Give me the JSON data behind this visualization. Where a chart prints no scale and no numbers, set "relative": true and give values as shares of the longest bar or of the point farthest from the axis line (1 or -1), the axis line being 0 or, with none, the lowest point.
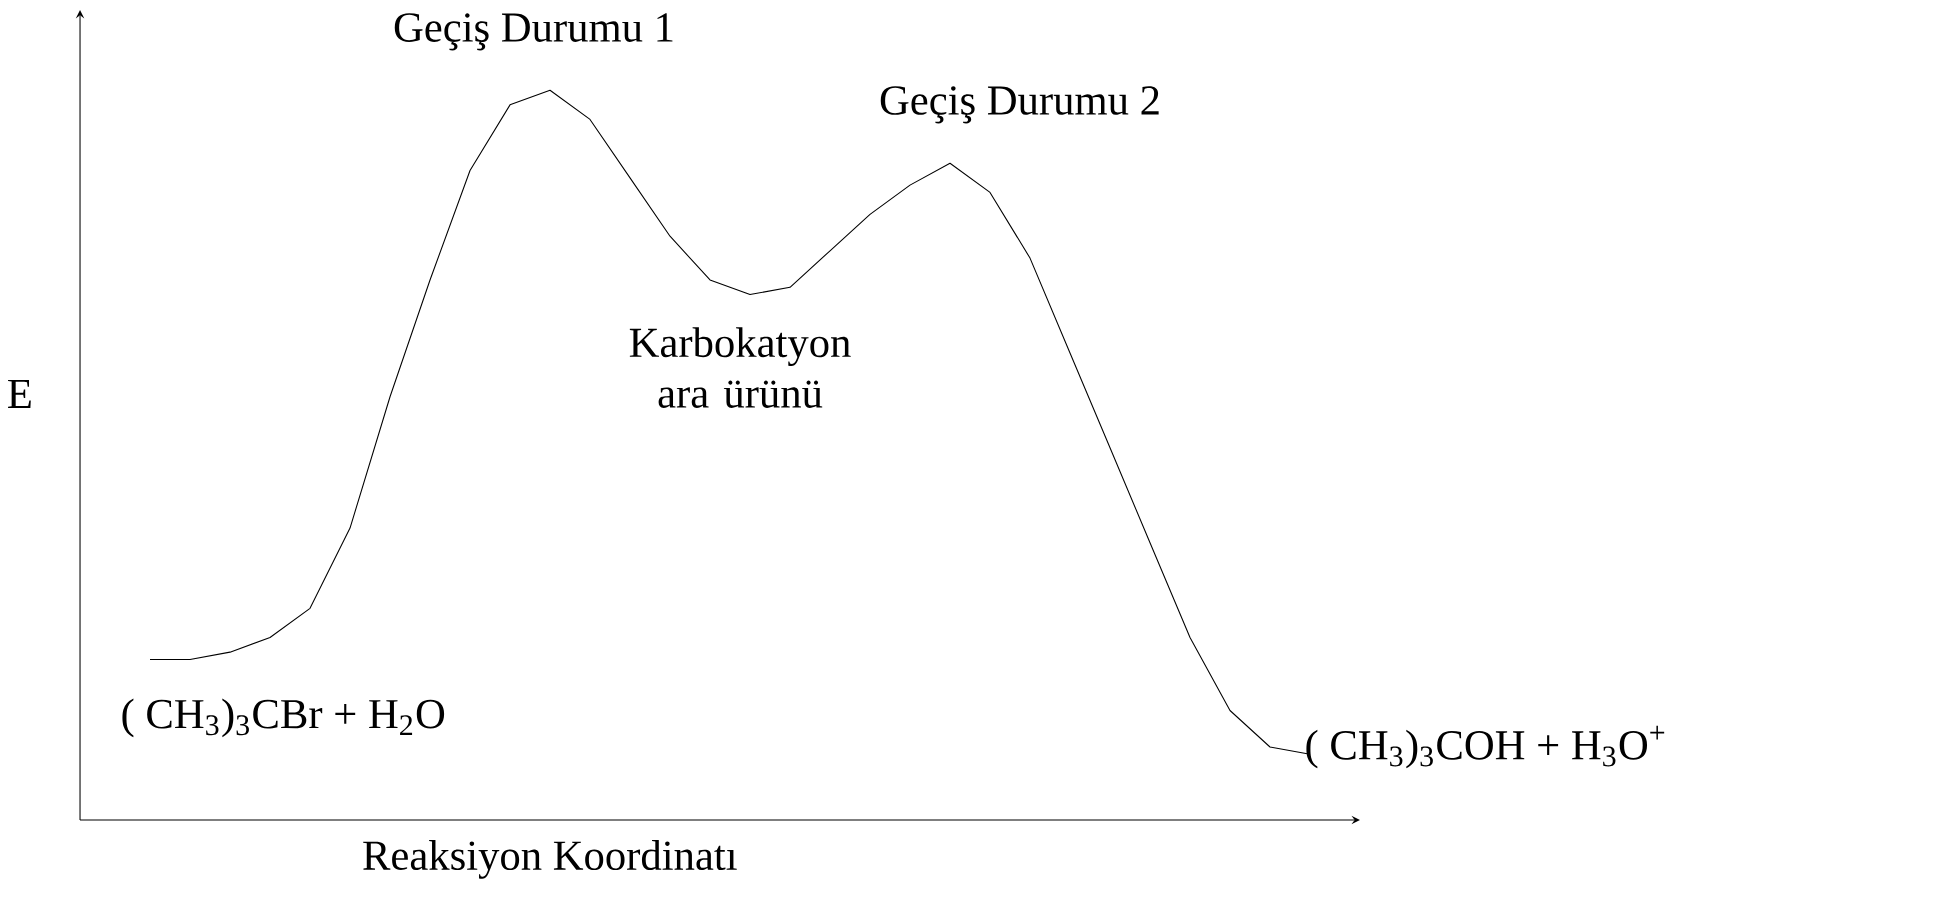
{
  "chart_data": {
    "type": "line",
    "relative": true,
    "xlabel": "Reaksiyon Koordinatı",
    "ylabel": "E",
    "categories": [
      null,
      null,
      null,
      null,
      null,
      null,
      null,
      null,
      null,
      null,
      null,
      null,
      null,
      null,
      null,
      null,
      null,
      null,
      null,
      null,
      null,
      null,
      null,
      null,
      null,
      null,
      null,
      null,
      null,
      null
    ],
    "series": [
      {
        "color": "#000000",
        "values": [
          0.22,
          0.22,
          0.23,
          0.25,
          0.29,
          0.4,
          0.58,
          0.74,
          0.89,
          0.98,
          1.0,
          0.96,
          0.88,
          0.8,
          0.74,
          0.72,
          0.73,
          0.78,
          0.83,
          0.87,
          0.9,
          0.86,
          0.77,
          0.64,
          0.51,
          0.38,
          0.25,
          0.15,
          0.1,
          0.09
        ]
      }
    ],
    "annotations": [
      "Geçiş Durumu 1",
      "Geçiş Durumu 2",
      "Karbokatyon ara ürünü",
      "( CH$_{3}$)$_{3}$CBr  +   H$_{2}$O",
      "( CH$_{3}$)$_{3}$COH  +  H$_{3}$O$^{+}$"
    ],
    "marker": "none",
    "line_style": "solid"
  }
}
